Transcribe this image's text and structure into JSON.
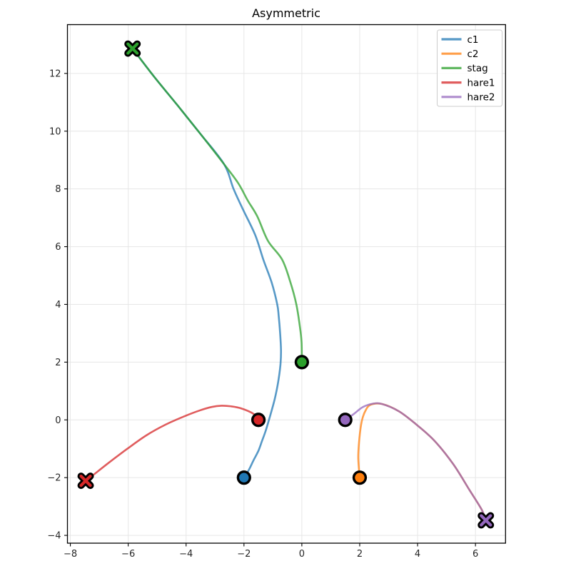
{
  "figure": {
    "background": "#ffffff"
  },
  "chart_data": {
    "type": "line",
    "title": "Asymmetric",
    "xlabel": "",
    "ylabel": "",
    "xlim": [
      -8.1,
      7.04
    ],
    "ylim": [
      -4.27,
      13.69
    ],
    "xticks": [
      -8,
      -6,
      -4,
      -2,
      0,
      2,
      4,
      6
    ],
    "yticks": [
      -4,
      -2,
      0,
      2,
      4,
      6,
      8,
      10,
      12
    ],
    "grid": true,
    "grid_color": "#e6e6e6",
    "spine_color": "#000000",
    "tick_label_color": "#262626",
    "line_alpha": 0.75,
    "line_width": 2.6,
    "legend": {
      "position": "upper right",
      "entries": [
        "c1",
        "c2",
        "stag",
        "hare1",
        "hare2"
      ],
      "border_color": "#cccccc",
      "background": "#ffffff"
    },
    "series": [
      {
        "name": "c1",
        "color": "#1f77b4",
        "start_marker": {
          "shape": "circle",
          "xy": [
            -2,
            -2
          ]
        },
        "end_marker": null,
        "points": [
          [
            -2,
            -2
          ],
          [
            -1.83,
            -1.73
          ],
          [
            -1.67,
            -1.4
          ],
          [
            -1.5,
            -1.07
          ],
          [
            -1.38,
            -0.74
          ],
          [
            -1.26,
            -0.41
          ],
          [
            -1.15,
            -0.05
          ],
          [
            -1.05,
            0.3
          ],
          [
            -0.93,
            0.75
          ],
          [
            -0.82,
            1.3
          ],
          [
            -0.74,
            1.9
          ],
          [
            -0.72,
            2.4
          ],
          [
            -0.75,
            3.0
          ],
          [
            -0.8,
            3.6
          ],
          [
            -0.85,
            4.0
          ],
          [
            -1.04,
            4.75
          ],
          [
            -1.33,
            5.55
          ],
          [
            -1.61,
            6.4
          ],
          [
            -2.04,
            7.3
          ],
          [
            -2.36,
            8.0
          ],
          [
            -2.69,
            8.86
          ],
          [
            -3.5,
            9.9
          ],
          [
            -4.3,
            10.9
          ],
          [
            -5.1,
            11.88
          ],
          [
            -5.85,
            12.86
          ]
        ]
      },
      {
        "name": "c2",
        "color": "#ff7f0e",
        "start_marker": {
          "shape": "circle",
          "xy": [
            2,
            -2
          ]
        },
        "end_marker": null,
        "points": [
          [
            2,
            -2
          ],
          [
            1.95,
            -1.3
          ],
          [
            1.99,
            -0.63
          ],
          [
            2.07,
            -0.05
          ],
          [
            2.19,
            0.3
          ],
          [
            2.37,
            0.52
          ],
          [
            2.77,
            0.55
          ],
          [
            3.35,
            0.3
          ],
          [
            3.92,
            -0.13
          ],
          [
            4.57,
            -0.71
          ],
          [
            5.23,
            -1.53
          ],
          [
            5.8,
            -2.44
          ],
          [
            6.21,
            -3.1
          ],
          [
            6.36,
            -3.48
          ]
        ]
      },
      {
        "name": "stag",
        "color": "#2ca02c",
        "start_marker": {
          "shape": "circle",
          "xy": [
            0,
            2
          ]
        },
        "end_marker": {
          "shape": "X",
          "xy": [
            -5.85,
            12.86
          ]
        },
        "points": [
          [
            0,
            2
          ],
          [
            -0.01,
            2.7
          ],
          [
            -0.07,
            3.25
          ],
          [
            -0.19,
            4.0
          ],
          [
            -0.39,
            4.75
          ],
          [
            -0.68,
            5.55
          ],
          [
            -1.17,
            6.2
          ],
          [
            -1.54,
            7.05
          ],
          [
            -1.87,
            7.6
          ],
          [
            -2.2,
            8.2
          ],
          [
            -2.69,
            8.86
          ],
          [
            -3.5,
            9.9
          ],
          [
            -4.3,
            10.9
          ],
          [
            -5.1,
            11.88
          ],
          [
            -5.85,
            12.86
          ]
        ]
      },
      {
        "name": "hare1",
        "color": "#d62728",
        "start_marker": {
          "shape": "circle",
          "xy": [
            -1.5,
            0
          ]
        },
        "end_marker": {
          "shape": "X",
          "xy": [
            -7.47,
            -2.11
          ]
        },
        "points": [
          [
            -1.5,
            0
          ],
          [
            -1.67,
            0.21
          ],
          [
            -2.1,
            0.4
          ],
          [
            -2.45,
            0.47
          ],
          [
            -2.78,
            0.49
          ],
          [
            -3.1,
            0.45
          ],
          [
            -3.52,
            0.33
          ],
          [
            -4.07,
            0.12
          ],
          [
            -4.72,
            -0.17
          ],
          [
            -5.38,
            -0.54
          ],
          [
            -6.03,
            -1.0
          ],
          [
            -6.68,
            -1.49
          ],
          [
            -7.26,
            -1.95
          ],
          [
            -7.47,
            -2.11
          ]
        ]
      },
      {
        "name": "hare2",
        "color": "#9467bd",
        "start_marker": {
          "shape": "circle",
          "xy": [
            1.5,
            0
          ]
        },
        "end_marker": {
          "shape": "X",
          "xy": [
            6.36,
            -3.48
          ]
        },
        "points": [
          [
            1.5,
            0
          ],
          [
            1.79,
            0.2
          ],
          [
            2.1,
            0.44
          ],
          [
            2.45,
            0.56
          ],
          [
            2.77,
            0.55
          ],
          [
            3.35,
            0.3
          ],
          [
            3.92,
            -0.13
          ],
          [
            4.57,
            -0.71
          ],
          [
            5.23,
            -1.53
          ],
          [
            5.8,
            -2.44
          ],
          [
            6.21,
            -3.1
          ],
          [
            6.36,
            -3.48
          ]
        ]
      }
    ]
  }
}
